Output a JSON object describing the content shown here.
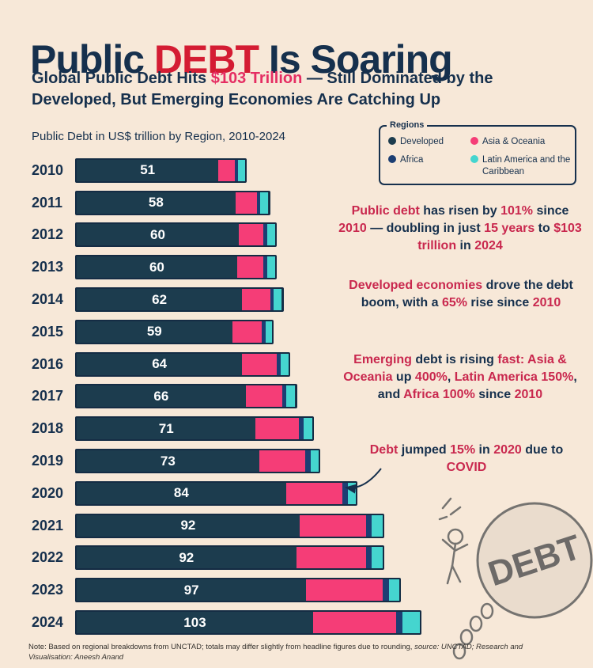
{
  "page": {
    "background": "#f7e8d8"
  },
  "title": {
    "part1": "Public ",
    "part2": "DEBT",
    "part3": " Is Soaring"
  },
  "subtitle_segments": [
    {
      "t": "Global Public Debt Hits ",
      "s": "d"
    },
    {
      "t": "$103 Trillion",
      "s": "p"
    },
    {
      "t": " — Still Dominated by the Developed, But Emerging Economies Are Catching Up",
      "s": "d"
    }
  ],
  "chart_caption": "Public Debt in US$ trillion by Region, 2010-2024",
  "legend": {
    "title": "Regions",
    "items": [
      {
        "label": "Developed",
        "color": "#1c3c4e"
      },
      {
        "label": "Asia & Oceania",
        "color": "#f53d77"
      },
      {
        "label": "Africa",
        "color": "#1c3e73"
      },
      {
        "label": "Latin America and the Caribbean",
        "color": "#45d5cf"
      }
    ]
  },
  "chart_data": {
    "type": "bar",
    "stacked": true,
    "orientation": "horizontal",
    "title": "Public Debt in US$ trillion by Region, 2010-2024",
    "unit": "US$ trillion",
    "categories": [
      "2010",
      "2011",
      "2012",
      "2013",
      "2014",
      "2015",
      "2016",
      "2017",
      "2018",
      "2019",
      "2020",
      "2021",
      "2022",
      "2023",
      "2024"
    ],
    "totals": [
      51,
      58,
      60,
      60,
      62,
      59,
      64,
      66,
      71,
      73,
      84,
      92,
      92,
      97,
      103
    ],
    "series": [
      {
        "name": "Developed",
        "color": "#1c3c4e",
        "values": [
          43,
          48,
          49,
          48.5,
          50,
          47,
          50,
          51,
          54,
          55,
          63,
          67,
          66,
          69,
          71
        ]
      },
      {
        "name": "Asia & Oceania",
        "color": "#f53d77",
        "values": [
          5,
          6.5,
          7.5,
          8,
          8.5,
          9,
          10.5,
          11,
          13,
          14,
          17,
          20,
          21,
          23,
          25
        ]
      },
      {
        "name": "Africa",
        "color": "#1c3e73",
        "values": [
          0.9,
          1,
          1,
          1.1,
          1.1,
          1.1,
          1.2,
          1.3,
          1.4,
          1.5,
          1.6,
          1.7,
          1.7,
          1.8,
          1.8
        ]
      },
      {
        "name": "Latin America and the Caribbean",
        "color": "#45d5cf",
        "values": [
          2.1,
          2.5,
          2.5,
          2.4,
          2.4,
          1.9,
          2.3,
          2.7,
          2.6,
          2.5,
          2.4,
          3.3,
          3.3,
          3.2,
          5.2
        ]
      }
    ],
    "xlim": [
      0,
      110
    ],
    "grid": false,
    "legend_position": "top-right"
  },
  "annotations": [
    {
      "segments": [
        {
          "t": "Public debt",
          "s": "r"
        },
        {
          "t": " has risen by ",
          "s": "d"
        },
        {
          "t": "101%",
          "s": "r"
        },
        {
          "t": " since ",
          "s": "d"
        },
        {
          "t": "2010",
          "s": "r"
        },
        {
          "t": " — doubling in just ",
          "s": "d"
        },
        {
          "t": "15 years",
          "s": "r"
        },
        {
          "t": " to ",
          "s": "d"
        },
        {
          "t": "$103 trillion",
          "s": "r"
        },
        {
          "t": " in ",
          "s": "d"
        },
        {
          "t": "2024",
          "s": "r"
        }
      ]
    },
    {
      "segments": [
        {
          "t": "Developed economies",
          "s": "r"
        },
        {
          "t": " drove the debt boom, with a ",
          "s": "d"
        },
        {
          "t": "65%",
          "s": "r"
        },
        {
          "t": " rise since ",
          "s": "d"
        },
        {
          "t": "2010",
          "s": "r"
        }
      ]
    },
    {
      "segments": [
        {
          "t": "Emerging",
          "s": "r"
        },
        {
          "t": " debt is rising ",
          "s": "d"
        },
        {
          "t": "fast:",
          "s": "r"
        },
        {
          "t": " ",
          "s": "d"
        },
        {
          "t": "Asia & Oceania",
          "s": "r"
        },
        {
          "t": " up ",
          "s": "d"
        },
        {
          "t": "400%",
          "s": "r"
        },
        {
          "t": ", ",
          "s": "d"
        },
        {
          "t": "Latin America 150%",
          "s": "r"
        },
        {
          "t": ", and ",
          "s": "d"
        },
        {
          "t": "Africa 100%",
          "s": "r"
        },
        {
          "t": " since ",
          "s": "d"
        },
        {
          "t": "2010",
          "s": "r"
        }
      ]
    },
    {
      "segments": [
        {
          "t": "Debt",
          "s": "r"
        },
        {
          "t": " jumped ",
          "s": "d"
        },
        {
          "t": "15%",
          "s": "r"
        },
        {
          "t": " in ",
          "s": "d"
        },
        {
          "t": "2020",
          "s": "r"
        },
        {
          "t": " due to ",
          "s": "d"
        },
        {
          "t": "COVID",
          "s": "r"
        }
      ]
    }
  ],
  "watermark_text": "DEBT",
  "footer_segments": [
    {
      "t": "Note: Based on regional breakdowns from UNCTAD; totals may differ slightly from headline figures due to rounding, ",
      "s": "n"
    },
    {
      "t": "source: UNCTAD; Research and Visualisation: Aneesh Anand",
      "s": "i"
    }
  ]
}
